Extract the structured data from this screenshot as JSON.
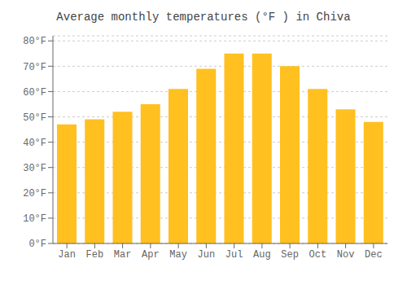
{
  "chart_data": {
    "type": "bar",
    "title": "Average monthly temperatures (°F ) in Chiva",
    "categories": [
      "Jan",
      "Feb",
      "Mar",
      "Apr",
      "May",
      "Jun",
      "Jul",
      "Aug",
      "Sep",
      "Oct",
      "Nov",
      "Dec"
    ],
    "values": [
      47,
      49,
      52,
      55,
      61,
      69,
      75,
      75,
      70,
      61,
      53,
      48
    ],
    "color": "#FFC020",
    "ylim": [
      0,
      82
    ],
    "yticks": [
      {
        "value": 0,
        "label": "0°F"
      },
      {
        "value": 10,
        "label": "10°F"
      },
      {
        "value": 20,
        "label": "20°F"
      },
      {
        "value": 30,
        "label": "30°F"
      },
      {
        "value": 40,
        "label": "40°F"
      },
      {
        "value": 50,
        "label": "50°F"
      },
      {
        "value": 60,
        "label": "60°F"
      },
      {
        "value": 70,
        "label": "70°F"
      },
      {
        "value": 80,
        "label": "80°F"
      }
    ],
    "grid": true
  }
}
